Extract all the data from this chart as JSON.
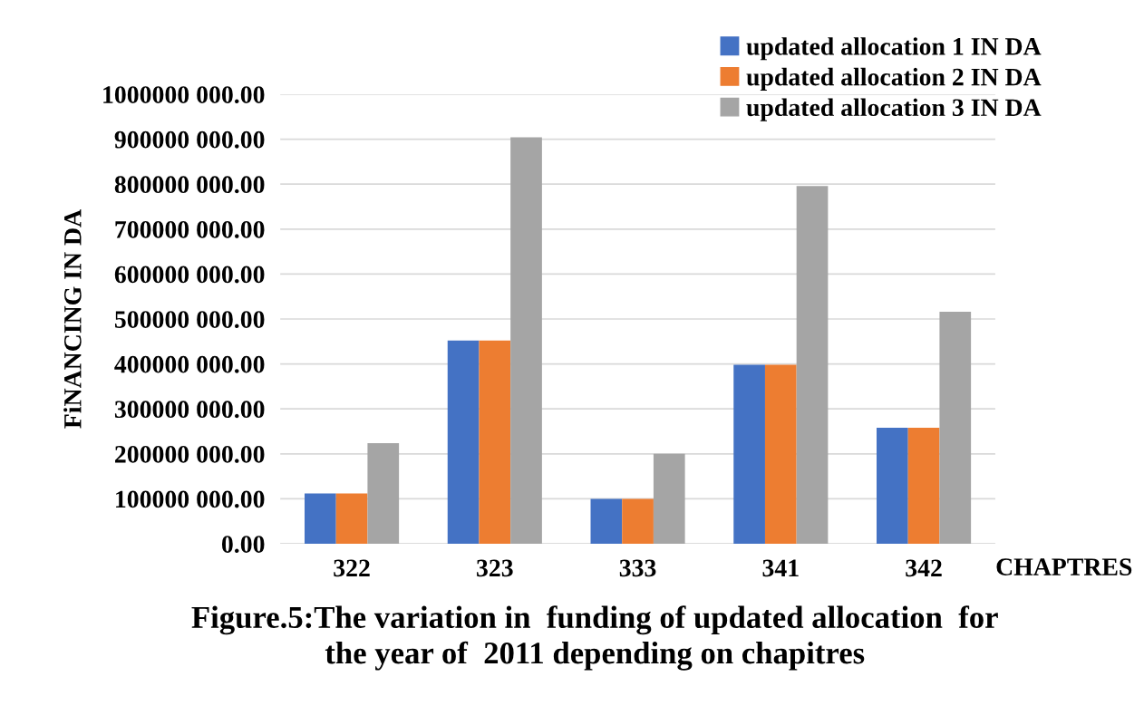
{
  "chart_data": {
    "type": "bar",
    "title": "Figure.5:The variation in  funding of updated allocation  for\nthe year of  2011 depending on chapitres",
    "xlabel": "CHAPTRES",
    "ylabel": "FiNANCING IN DA",
    "categories": [
      "322",
      "323",
      "333",
      "341",
      "342"
    ],
    "series": [
      {
        "name": "updated allocation 1 IN DA",
        "color": "#4472c4",
        "values": [
          112000000,
          452000000,
          100000000,
          398000000,
          258000000
        ]
      },
      {
        "name": "updated allocation 2 IN DA",
        "color": "#ed7d31",
        "values": [
          112000000,
          452000000,
          100000000,
          398000000,
          258000000
        ]
      },
      {
        "name": "updated allocation 3 IN DA",
        "color": "#a5a5a5",
        "values": [
          224000000,
          904000000,
          200000000,
          796000000,
          516000000
        ]
      }
    ],
    "ylim": [
      0,
      1000000000
    ],
    "yticks": [
      {
        "value": 0,
        "label": "0.00"
      },
      {
        "value": 100000000,
        "label": "100000 000.00"
      },
      {
        "value": 200000000,
        "label": "200000 000.00"
      },
      {
        "value": 300000000,
        "label": "300000 000.00"
      },
      {
        "value": 400000000,
        "label": "400000 000.00"
      },
      {
        "value": 500000000,
        "label": "500000 000.00"
      },
      {
        "value": 600000000,
        "label": "600000 000.00"
      },
      {
        "value": 700000000,
        "label": "700000 000.00"
      },
      {
        "value": 800000000,
        "label": "800000 000.00"
      },
      {
        "value": 900000000,
        "label": "900000 000.00"
      },
      {
        "value": 1000000000,
        "label": "1000000 000.00"
      }
    ],
    "grid": "y",
    "legend": "top right"
  }
}
